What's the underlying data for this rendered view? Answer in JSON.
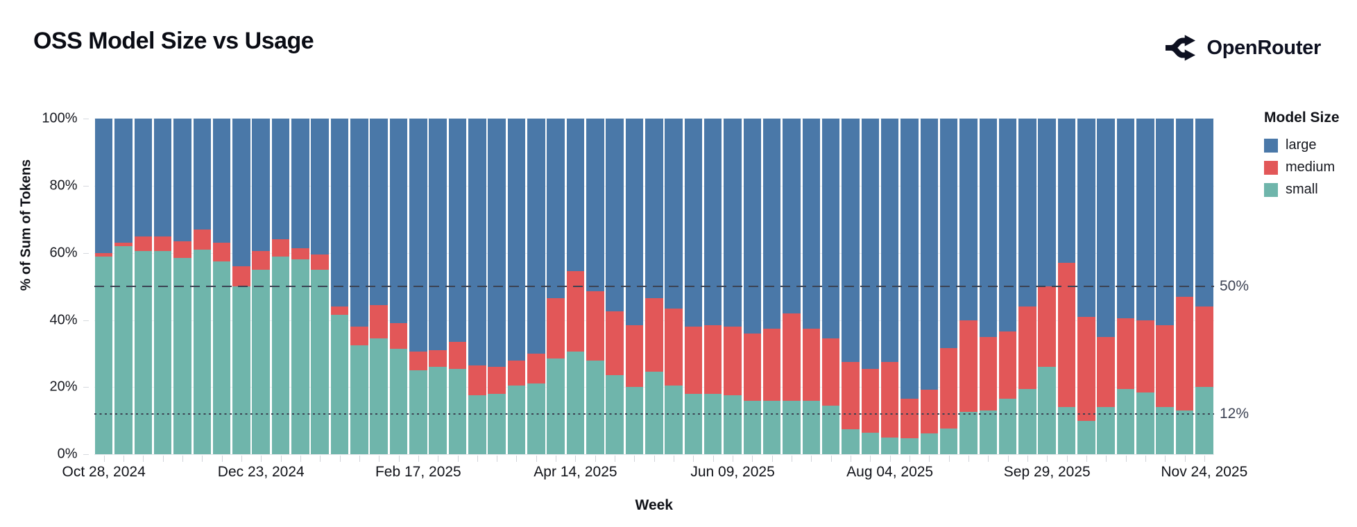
{
  "header": {
    "title": "OSS Model Size vs Usage",
    "brand": "OpenRouter"
  },
  "chart_data": {
    "type": "bar",
    "stacked": true,
    "normalized_percent": true,
    "title": "OSS Model Size vs Usage",
    "xlabel": "Week",
    "ylabel": "% of Sum of Tokens",
    "ylim": [
      0,
      100
    ],
    "grid": "subtle-horizontal",
    "y_ticks": [
      0,
      20,
      40,
      60,
      80,
      100
    ],
    "y_tick_suffix": "%",
    "num_weeks": 57,
    "x_tick_every": 8,
    "x_tick_labels": [
      "Oct 28, 2024",
      "Dec 23, 2024",
      "Feb 17, 2025",
      "Apr 14, 2025",
      "Jun 09, 2025",
      "Aug 04, 2025",
      "Sep 29, 2025",
      "Nov 24, 2025"
    ],
    "reference_lines": [
      {
        "value": 50,
        "label": "50%",
        "style": "dashed",
        "color": "#3b4252"
      },
      {
        "value": 12,
        "label": "12%",
        "style": "dotted",
        "color": "#3b4252"
      }
    ],
    "legend": {
      "title": "Model Size",
      "position": "right",
      "entries": [
        {
          "label": "large",
          "color": "#4a78a8"
        },
        {
          "label": "medium",
          "color": "#e25758"
        },
        {
          "label": "small",
          "color": "#6fb5ab"
        }
      ]
    },
    "series": [
      {
        "name": "small",
        "color": "#6fb5ab",
        "values": [
          59,
          62,
          60.5,
          60.5,
          58.5,
          61,
          57.5,
          50,
          55,
          59,
          58,
          55,
          41.5,
          32.5,
          34.5,
          31.5,
          25,
          26,
          25.5,
          17.5,
          18,
          20.5,
          21,
          28.5,
          30.5,
          28,
          23.5,
          20,
          24.5,
          20.5,
          18,
          18,
          17.5,
          16,
          16,
          16,
          16,
          14.5,
          7.5,
          6.5,
          5,
          4.7,
          6.3,
          7.7,
          12.6,
          13,
          16.5,
          19.5,
          26,
          14,
          10,
          14,
          19.5,
          18.5,
          14,
          13,
          20
        ]
      },
      {
        "name": "medium",
        "color": "#e25758",
        "values": [
          1,
          1,
          4.5,
          4.5,
          5,
          6,
          5.5,
          6,
          5.5,
          5,
          3.5,
          4.5,
          2.5,
          5.5,
          10,
          7.5,
          5.5,
          5,
          8,
          9,
          8,
          7.5,
          9,
          18,
          24,
          20.5,
          19,
          18.5,
          22,
          23,
          20,
          20.5,
          20.5,
          20,
          21.5,
          26,
          21.5,
          20,
          20,
          19,
          22.5,
          11.8,
          13,
          24,
          27.2,
          22,
          20,
          24.5,
          24,
          43,
          31,
          21,
          21,
          21.5,
          24.5,
          34,
          24
        ]
      },
      {
        "name": "large",
        "color": "#4a78a8",
        "values": [
          40,
          37,
          35,
          35,
          36.5,
          33,
          37,
          44,
          39.5,
          36,
          38.5,
          40.5,
          56,
          62,
          55.5,
          61,
          69.5,
          69,
          66.5,
          73.5,
          74,
          72,
          70,
          53.5,
          45.5,
          51.5,
          57.5,
          61.5,
          53.5,
          56.5,
          62,
          61.5,
          62,
          64,
          62.5,
          58,
          62.5,
          65.5,
          72.5,
          74.5,
          72.5,
          83.5,
          80.7,
          68.3,
          60.2,
          65,
          63.5,
          56,
          50,
          43,
          59,
          65,
          59.5,
          60,
          61.5,
          53,
          56
        ]
      }
    ]
  }
}
